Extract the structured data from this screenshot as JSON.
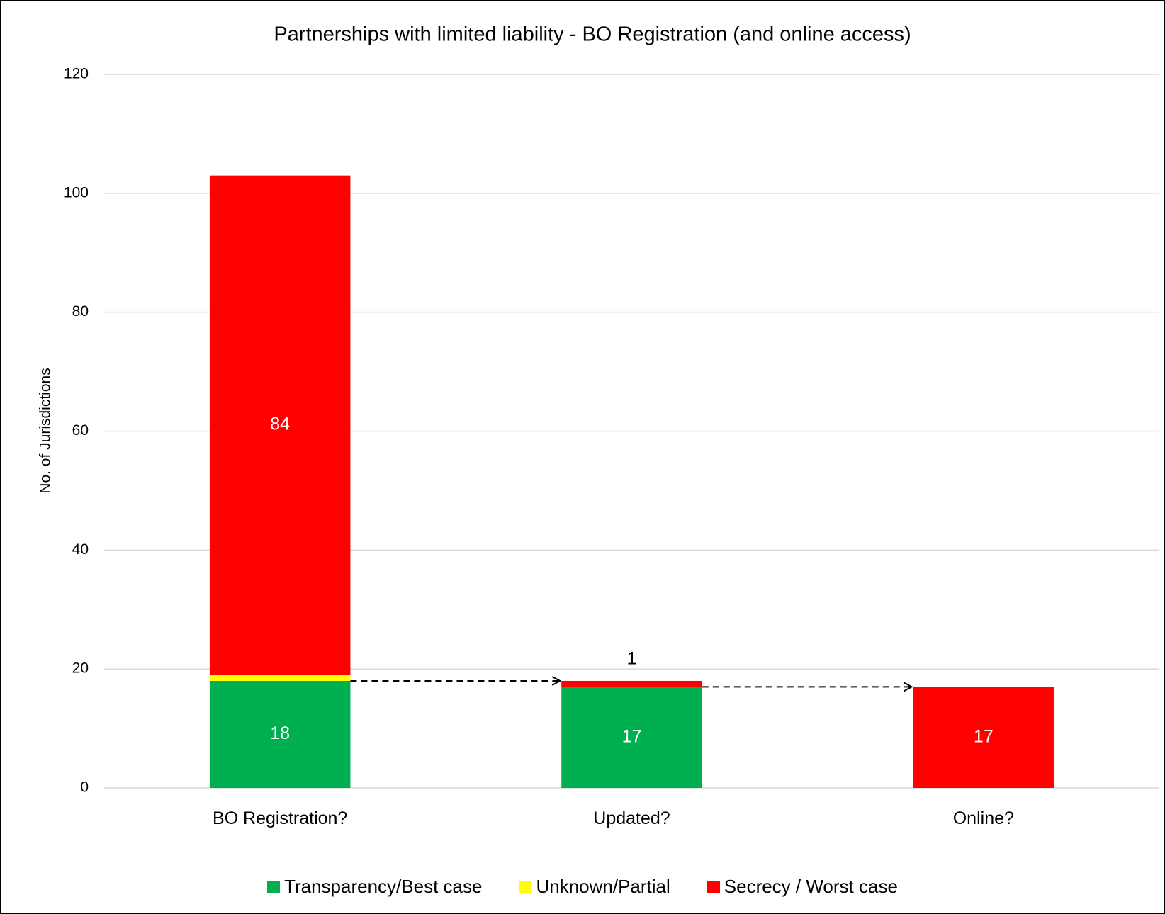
{
  "chart_data": {
    "type": "stacked_bar",
    "title": "Partnerships with limited liability - BO Registration (and online access)",
    "ylabel": "No. of Jurisdictions",
    "categories": [
      "BO Registration?",
      "Updated?",
      "Online?"
    ],
    "series": [
      {
        "name": "Transparency/Best case",
        "color": "#00b050",
        "values": [
          18,
          17,
          null
        ]
      },
      {
        "name": "Unknown/Partial",
        "color": "#ffff00",
        "values": [
          1,
          null,
          null
        ],
        "show_labels": false
      },
      {
        "name": "Secrecy / Worst case",
        "color": "#ff0000",
        "values": [
          84,
          1,
          17
        ]
      }
    ],
    "ylim": [
      0,
      120
    ],
    "yticks": [
      0,
      20,
      40,
      60,
      80,
      100,
      120
    ],
    "grid": true,
    "legend": "bottom"
  }
}
